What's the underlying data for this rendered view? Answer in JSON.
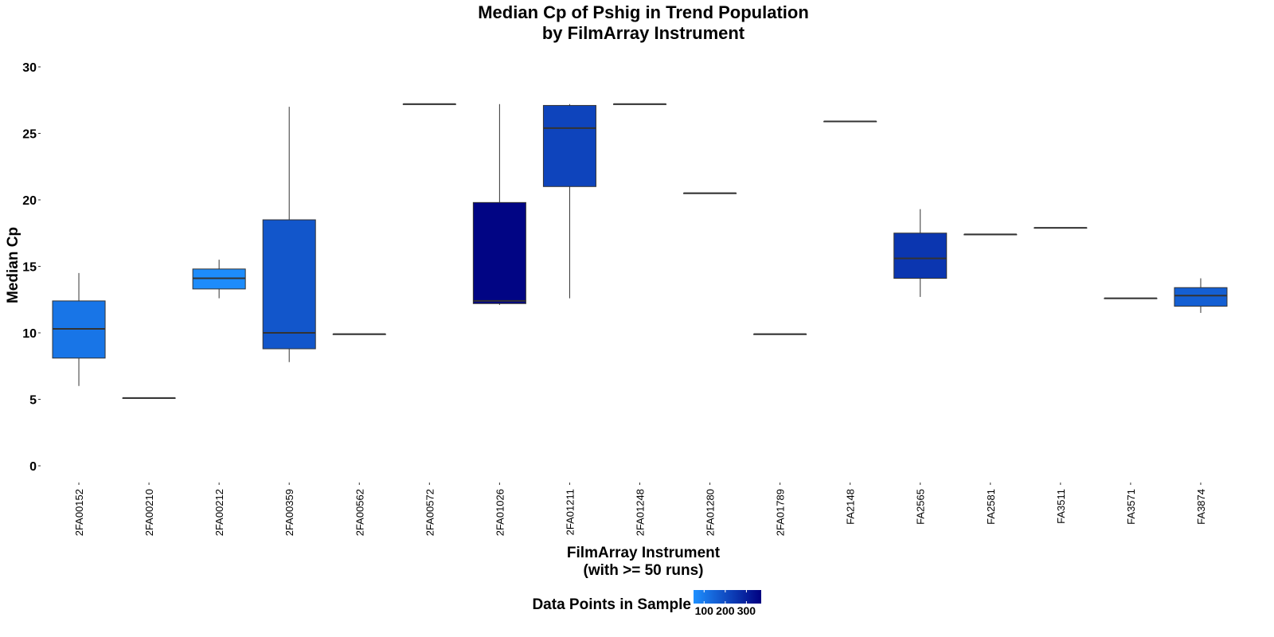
{
  "chart_data": {
    "type": "box",
    "title_line1": "Median Cp of Pshig in Trend Population",
    "title_line2": "by FilmArray Instrument",
    "xlabel_line1": "FilmArray Instrument",
    "xlabel_line2": "(with >= 50 runs)",
    "ylabel": "Median Cp",
    "ylim": [
      0,
      30
    ],
    "yticks": [
      0,
      5,
      10,
      15,
      20,
      25,
      30
    ],
    "grid": false,
    "legend": {
      "title": "Data Points in Sample",
      "placement": "bottom",
      "ticks": [
        100,
        200,
        300
      ],
      "range": [
        50,
        370
      ],
      "color_low": "#1E90FF",
      "color_high": "#000080"
    },
    "boxes": [
      {
        "category": "2FA00152",
        "whisker_low": 6.0,
        "q1": 8.1,
        "median": 10.3,
        "q3": 12.4,
        "whisker_high": 14.5,
        "n": 110
      },
      {
        "category": "2FA00210",
        "whisker_low": 5.1,
        "q1": 5.1,
        "median": 5.1,
        "q3": 5.1,
        "whisker_high": 5.1,
        "n": 100
      },
      {
        "category": "2FA00212",
        "whisker_low": 12.6,
        "q1": 13.3,
        "median": 14.1,
        "q3": 14.8,
        "whisker_high": 15.5,
        "n": 60
      },
      {
        "category": "2FA00359",
        "whisker_low": 7.8,
        "q1": 8.8,
        "median": 10.0,
        "q3": 18.5,
        "whisker_high": 27.0,
        "n": 180
      },
      {
        "category": "2FA00562",
        "whisker_low": 9.9,
        "q1": 9.9,
        "median": 9.9,
        "q3": 9.9,
        "whisker_high": 9.9,
        "n": 150
      },
      {
        "category": "2FA00572",
        "whisker_low": 27.2,
        "q1": 27.2,
        "median": 27.2,
        "q3": 27.2,
        "whisker_high": 27.2,
        "n": 150
      },
      {
        "category": "2FA01026",
        "whisker_low": 12.1,
        "q1": 12.2,
        "median": 12.4,
        "q3": 19.8,
        "whisker_high": 27.2,
        "n": 360
      },
      {
        "category": "2FA01211",
        "whisker_low": 12.6,
        "q1": 21.0,
        "median": 25.4,
        "q3": 27.1,
        "whisker_high": 27.2,
        "n": 220
      },
      {
        "category": "2FA01248",
        "whisker_low": 27.2,
        "q1": 27.2,
        "median": 27.2,
        "q3": 27.2,
        "whisker_high": 27.2,
        "n": 150
      },
      {
        "category": "2FA01280",
        "whisker_low": 20.5,
        "q1": 20.5,
        "median": 20.5,
        "q3": 20.5,
        "whisker_high": 20.5,
        "n": 150
      },
      {
        "category": "2FA01789",
        "whisker_low": 9.9,
        "q1": 9.9,
        "median": 9.9,
        "q3": 9.9,
        "whisker_high": 9.9,
        "n": 150
      },
      {
        "category": "FA2148",
        "whisker_low": 25.9,
        "q1": 25.9,
        "median": 25.9,
        "q3": 25.9,
        "whisker_high": 25.9,
        "n": 150
      },
      {
        "category": "FA2565",
        "whisker_low": 12.7,
        "q1": 14.1,
        "median": 15.6,
        "q3": 17.5,
        "whisker_high": 19.3,
        "n": 250
      },
      {
        "category": "FA2581",
        "whisker_low": 17.4,
        "q1": 17.4,
        "median": 17.4,
        "q3": 17.4,
        "whisker_high": 17.4,
        "n": 150
      },
      {
        "category": "FA3511",
        "whisker_low": 17.9,
        "q1": 17.9,
        "median": 17.9,
        "q3": 17.9,
        "whisker_high": 17.9,
        "n": 150
      },
      {
        "category": "FA3571",
        "whisker_low": 12.6,
        "q1": 12.6,
        "median": 12.6,
        "q3": 12.6,
        "whisker_high": 12.6,
        "n": 150
      },
      {
        "category": "FA3874",
        "whisker_low": 11.5,
        "q1": 12.0,
        "median": 12.8,
        "q3": 13.4,
        "whisker_high": 14.1,
        "n": 160
      }
    ]
  }
}
